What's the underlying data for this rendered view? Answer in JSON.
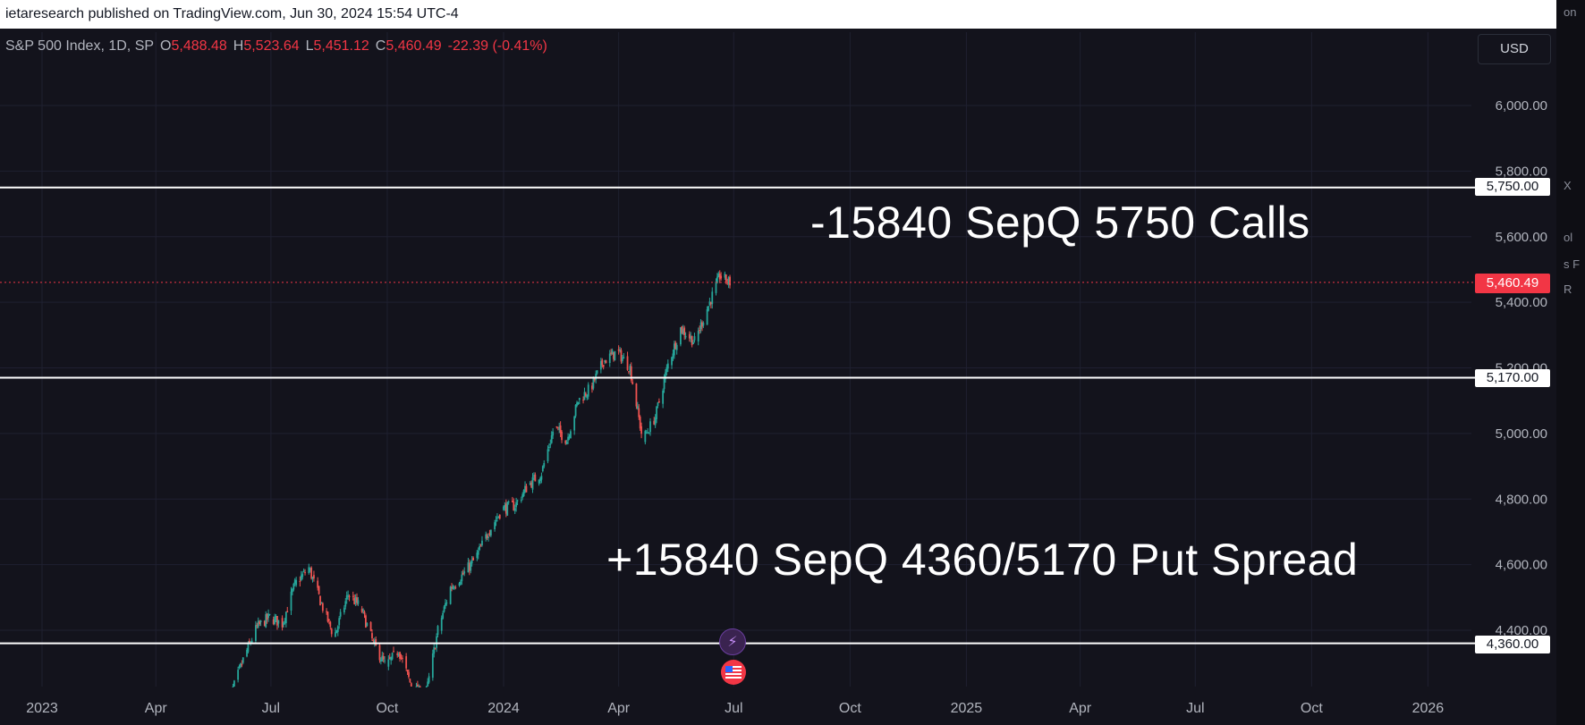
{
  "topbar": {
    "text": "ietaresearch published on TradingView.com, Jun 30, 2024 15:54 UTC-4"
  },
  "legend": {
    "symbol": "S&P 500 Index, 1D, SP",
    "open_key": "O",
    "open": "5,488.48",
    "high_key": "H",
    "high": "5,523.64",
    "low_key": "L",
    "low": "5,451.12",
    "close_key": "C",
    "close": "5,460.49",
    "change": "-22.39 (-0.41%)"
  },
  "currency_button": "USD",
  "current_price": "5,460.49",
  "annotations": {
    "calls": "-15840 SepQ 5750 Calls",
    "put_spread": "+15840 SepQ 4360/5170 Put Spread"
  },
  "colors": {
    "background": "#13131c",
    "up": "#26a69a",
    "down": "#ef5350",
    "level_line": "#ffffff",
    "current_price": "#f23645",
    "grid": "#1f2030"
  },
  "icons": {
    "event_lightning": "lightning-icon",
    "event_us_flag": "us-flag-icon"
  },
  "chart_data": {
    "type": "candlestick",
    "title": "S&P 500 Index, 1D, SP",
    "ylim": [
      4290,
      6090
    ],
    "y_ticks": [
      "6,000.00",
      "5,800.00",
      "5,600.00",
      "5,400.00",
      "5,200.00",
      "5,000.00",
      "4,800.00",
      "4,600.00",
      "4,400.00"
    ],
    "x_ticks": [
      "2023",
      "Apr",
      "Jul",
      "Oct",
      "2024",
      "Apr",
      "Jul",
      "Oct",
      "2025",
      "Apr",
      "Jul",
      "Oct",
      "2026"
    ],
    "horizontal_levels": [
      {
        "label": "5,750.00",
        "value": 5750
      },
      {
        "label": "5,170.00",
        "value": 5170
      },
      {
        "label": "4,360.00",
        "value": 4360
      }
    ],
    "current_price": 5460.49,
    "approx_close_path": [
      {
        "date": "2023-05-25",
        "close": 4150
      },
      {
        "date": "2023-06-01",
        "close": 4220
      },
      {
        "date": "2023-06-10",
        "close": 4320
      },
      {
        "date": "2023-06-20",
        "close": 4410
      },
      {
        "date": "2023-06-30",
        "close": 4440
      },
      {
        "date": "2023-07-10",
        "close": 4420
      },
      {
        "date": "2023-07-20",
        "close": 4540
      },
      {
        "date": "2023-07-31",
        "close": 4590
      },
      {
        "date": "2023-08-10",
        "close": 4480
      },
      {
        "date": "2023-08-20",
        "close": 4380
      },
      {
        "date": "2023-08-31",
        "close": 4510
      },
      {
        "date": "2023-09-10",
        "close": 4470
      },
      {
        "date": "2023-09-20",
        "close": 4360
      },
      {
        "date": "2023-09-30",
        "close": 4290
      },
      {
        "date": "2023-10-10",
        "close": 4340
      },
      {
        "date": "2023-10-20",
        "close": 4230
      },
      {
        "date": "2023-10-31",
        "close": 4190
      },
      {
        "date": "2023-11-10",
        "close": 4400
      },
      {
        "date": "2023-11-20",
        "close": 4530
      },
      {
        "date": "2023-11-30",
        "close": 4570
      },
      {
        "date": "2023-12-10",
        "close": 4620
      },
      {
        "date": "2023-12-20",
        "close": 4700
      },
      {
        "date": "2023-12-31",
        "close": 4770
      },
      {
        "date": "2024-01-10",
        "close": 4780
      },
      {
        "date": "2024-01-20",
        "close": 4840
      },
      {
        "date": "2024-01-31",
        "close": 4880
      },
      {
        "date": "2024-02-10",
        "close": 5020
      },
      {
        "date": "2024-02-20",
        "close": 4980
      },
      {
        "date": "2024-02-29",
        "close": 5100
      },
      {
        "date": "2024-03-10",
        "close": 5140
      },
      {
        "date": "2024-03-20",
        "close": 5220
      },
      {
        "date": "2024-03-31",
        "close": 5250
      },
      {
        "date": "2024-04-10",
        "close": 5200
      },
      {
        "date": "2024-04-20",
        "close": 4980
      },
      {
        "date": "2024-04-30",
        "close": 5050
      },
      {
        "date": "2024-05-10",
        "close": 5210
      },
      {
        "date": "2024-05-20",
        "close": 5320
      },
      {
        "date": "2024-05-31",
        "close": 5280
      },
      {
        "date": "2024-06-10",
        "close": 5380
      },
      {
        "date": "2024-06-20",
        "close": 5480
      },
      {
        "date": "2024-06-28",
        "close": 5460
      }
    ]
  }
}
